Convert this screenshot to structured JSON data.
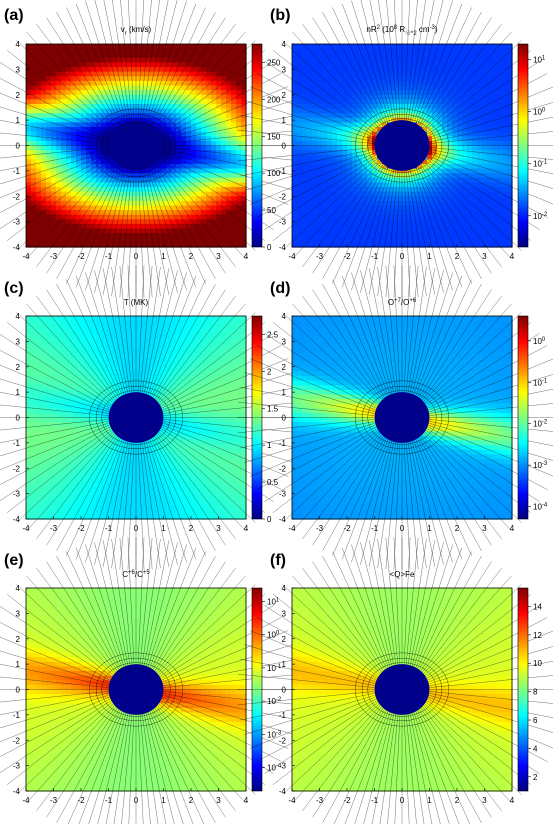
{
  "figure": {
    "panels": [
      {
        "label": "(a)",
        "title": "v_r (km/s)",
        "map": "vr",
        "cbar": {
          "scale": "linear",
          "ticks": [
            "0",
            "50",
            "100",
            "150",
            "200",
            "250"
          ],
          "ylim": [
            0,
            275
          ]
        }
      },
      {
        "label": "(b)",
        "title": "nR^2 (10^8 R_sun^2 cm^-3)",
        "map": "density",
        "cbar": {
          "scale": "log",
          "ticks": [
            "10^1",
            "10^0",
            "10^-1",
            "10^-2"
          ],
          "ylim": [
            -2.6,
            1.3
          ]
        }
      },
      {
        "label": "(c)",
        "title": "T (MK)",
        "map": "temp",
        "cbar": {
          "scale": "linear",
          "ticks": [
            "0",
            "0.5",
            "1",
            "1.5",
            "2",
            "2.5"
          ],
          "ylim": [
            0,
            2.75
          ]
        }
      },
      {
        "label": "(d)",
        "title": "O^+7/O^+6",
        "map": "ratio",
        "cbar": {
          "scale": "log",
          "ticks": [
            "10^0",
            "10^-1",
            "10^-2",
            "10^-3",
            "10^-4"
          ],
          "ylim": [
            -4.3,
            0.6
          ]
        }
      },
      {
        "label": "(e)",
        "title": "C^+6/C^+5",
        "map": "ratio2",
        "cbar": {
          "scale": "log",
          "ticks": [
            "10^1",
            "10^0",
            "10^-1",
            "10^-2",
            "10^-3",
            "10^-4"
          ],
          "ylim": [
            -4.7,
            1.4
          ]
        }
      },
      {
        "label": "(f)",
        "title": "<Q>Fe",
        "map": "qfe",
        "cbar": {
          "scale": "linear",
          "ticks": [
            "2",
            "4",
            "6",
            "8",
            "10",
            "12",
            "14"
          ],
          "ylim": [
            1,
            15.3
          ]
        }
      }
    ],
    "axis_ticks": [
      "-4",
      "-3",
      "-2",
      "-1",
      "0",
      "1",
      "2",
      "3",
      "4"
    ]
  },
  "chart_data": [
    {
      "type": "heatmap",
      "title": "vr (km/s)",
      "xlim": [
        -4,
        4
      ],
      "ylim": [
        -4,
        4
      ],
      "colorbar": {
        "range": [
          0,
          275
        ],
        "ticks": [
          0,
          50,
          100,
          150,
          200,
          250
        ]
      }
    },
    {
      "type": "heatmap",
      "title": "nR2 (108 R☉2 cm-3)",
      "xlim": [
        -4,
        4
      ],
      "ylim": [
        -4,
        4
      ],
      "colorbar": {
        "scale": "log",
        "ticks": [
          10,
          1,
          0.1,
          0.01
        ]
      }
    },
    {
      "type": "heatmap",
      "title": "T (MK)",
      "xlim": [
        -4,
        4
      ],
      "ylim": [
        -4,
        4
      ],
      "colorbar": {
        "range": [
          0,
          2.75
        ],
        "ticks": [
          0,
          0.5,
          1,
          1.5,
          2,
          2.5
        ]
      }
    },
    {
      "type": "heatmap",
      "title": "O+7/O+6",
      "xlim": [
        -4,
        4
      ],
      "ylim": [
        -4,
        4
      ],
      "colorbar": {
        "scale": "log",
        "ticks": [
          1,
          0.1,
          0.01,
          0.001,
          0.0001
        ]
      }
    },
    {
      "type": "heatmap",
      "title": "C+6/C+5",
      "xlim": [
        -4,
        4
      ],
      "ylim": [
        -4,
        4
      ],
      "colorbar": {
        "scale": "log",
        "ticks": [
          10,
          1,
          0.1,
          0.01,
          0.001,
          0.0001
        ]
      }
    },
    {
      "type": "heatmap",
      "title": "<Q>Fe",
      "xlim": [
        -4,
        4
      ],
      "ylim": [
        -4,
        4
      ],
      "colorbar": {
        "range": [
          1,
          15.3
        ],
        "ticks": [
          2,
          4,
          6,
          8,
          10,
          12,
          14
        ]
      }
    }
  ]
}
